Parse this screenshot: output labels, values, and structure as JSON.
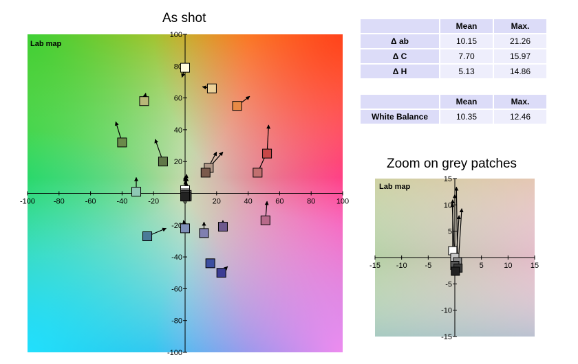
{
  "titles": {
    "main": "As shot",
    "zoom": "Zoom on grey patches"
  },
  "stats_tables": [
    {
      "headers": [
        "",
        "Mean",
        "Max."
      ],
      "rows": [
        {
          "label": "Δ ab",
          "mean": "10.15",
          "max": "21.26"
        },
        {
          "label": "Δ C",
          "mean": "7.70",
          "max": "15.97"
        },
        {
          "label": "Δ H",
          "mean": "5.13",
          "max": "14.86"
        }
      ]
    },
    {
      "headers": [
        "",
        "Mean",
        "Max."
      ],
      "rows": [
        {
          "label": "White Balance",
          "mean": "10.35",
          "max": "12.46"
        }
      ]
    }
  ],
  "chart_data": [
    {
      "type": "scatter",
      "title": "As shot",
      "map_label": "Lab map",
      "xlim": [
        -100,
        100
      ],
      "ylim": [
        -100,
        100
      ],
      "x_ticks": [
        -100,
        -80,
        -60,
        -40,
        -20,
        0,
        20,
        40,
        60,
        80,
        100
      ],
      "y_ticks": [
        -100,
        -80,
        -60,
        -40,
        -20,
        20,
        40,
        60,
        80,
        100
      ],
      "patches": [
        {
          "a": 0,
          "b": 79,
          "ta": -2,
          "tb": 73,
          "color": "#fffbe0"
        },
        {
          "a": 17,
          "b": 66,
          "ta": 11,
          "tb": 67,
          "color": "#ecd29a"
        },
        {
          "a": 33,
          "b": 55,
          "ta": 41,
          "tb": 61,
          "color": "#e88a45"
        },
        {
          "a": -26,
          "b": 58,
          "ta": -25,
          "tb": 63,
          "color": "#b8b878"
        },
        {
          "a": -40,
          "b": 32,
          "ta": -44,
          "tb": 45,
          "color": "#6a8a4a"
        },
        {
          "a": -14,
          "b": 20,
          "ta": -19,
          "tb": 34,
          "color": "#607848"
        },
        {
          "a": 15,
          "b": 16,
          "ta": 24,
          "tb": 26,
          "color": "#b09888"
        },
        {
          "a": 13,
          "b": 13,
          "ta": 20,
          "tb": 26,
          "color": "#7a5a4c"
        },
        {
          "a": 46,
          "b": 13,
          "ta": 53,
          "tb": 28,
          "color": "#c27070"
        },
        {
          "a": 52,
          "b": 25,
          "ta": 53,
          "tb": 43,
          "color": "#c84848"
        },
        {
          "a": -31,
          "b": 1,
          "ta": -31,
          "tb": 10,
          "color": "#8ec8b4"
        },
        {
          "a": -24,
          "b": -27,
          "ta": -12,
          "tb": -22,
          "color": "#4a7a98"
        },
        {
          "a": 0,
          "b": -22,
          "ta": -1,
          "tb": -17,
          "color": "#8090b8"
        },
        {
          "a": 12,
          "b": -25,
          "ta": 12,
          "tb": -18,
          "color": "#8080b0"
        },
        {
          "a": 24,
          "b": -21,
          "ta": 24,
          "tb": -17,
          "color": "#6e5a8e"
        },
        {
          "a": 51,
          "b": -17,
          "ta": 52,
          "tb": -5,
          "color": "#b86a8a"
        },
        {
          "a": 16,
          "b": -44,
          "ta": 15,
          "tb": -45,
          "color": "#3c4ea0"
        },
        {
          "a": 23,
          "b": -50,
          "ta": 27,
          "tb": -46,
          "color": "#3c3c94"
        },
        {
          "a": 0,
          "b": 2,
          "ta": 0,
          "tb": 11,
          "color": "#ffffff"
        },
        {
          "a": 0,
          "b": 0,
          "ta": 1,
          "tb": 12,
          "color": "#c8c8c8"
        },
        {
          "a": 1,
          "b": -1,
          "ta": 1,
          "tb": 10,
          "color": "#8a8a8a"
        },
        {
          "a": 0,
          "b": -1,
          "ta": 0,
          "tb": 10,
          "color": "#5a5a5a"
        },
        {
          "a": 1,
          "b": -2,
          "ta": 0,
          "tb": 8,
          "color": "#3a3a3a"
        },
        {
          "a": 0,
          "b": -2,
          "ta": 1,
          "tb": 7,
          "color": "#222222"
        }
      ]
    },
    {
      "type": "scatter",
      "title": "Zoom on grey patches",
      "map_label": "Lab map",
      "xlim": [
        -15,
        15
      ],
      "ylim": [
        -15,
        15
      ],
      "x_ticks": [
        -15,
        -10,
        -5,
        0,
        5,
        10,
        15
      ],
      "y_ticks": [
        -15,
        -10,
        -5,
        5,
        10,
        15
      ],
      "patches": [
        {
          "a": -0.4,
          "b": 1.3,
          "ta": -0.4,
          "tb": 11.0,
          "color": "#ffffff"
        },
        {
          "a": 0.0,
          "b": 0.0,
          "ta": 0.0,
          "tb": 12.0,
          "color": "#c8c8c8"
        },
        {
          "a": 0.5,
          "b": -0.8,
          "ta": 0.3,
          "tb": 13.4,
          "color": "#8a8a8a"
        },
        {
          "a": 0.0,
          "b": -1.5,
          "ta": -0.5,
          "tb": 10.3,
          "color": "#5a5a5a"
        },
        {
          "a": 0.6,
          "b": -2.0,
          "ta": 1.3,
          "tb": 9.3,
          "color": "#3a3a3a"
        },
        {
          "a": 0.1,
          "b": -2.6,
          "ta": 0.8,
          "tb": 8.0,
          "color": "#222222"
        }
      ]
    }
  ]
}
